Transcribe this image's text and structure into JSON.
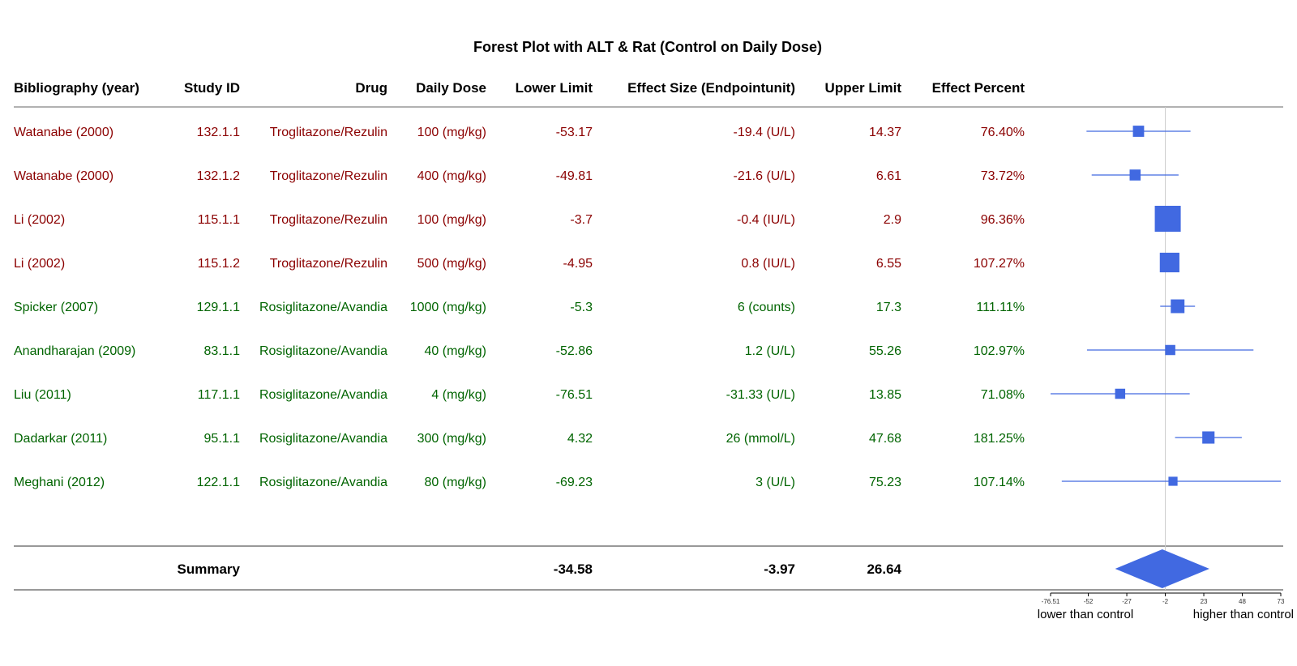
{
  "chart_data": {
    "type": "forest",
    "title": "Forest Plot with ALT & Rat (Control on Daily Dose)",
    "columns": [
      "Bibliography (year)",
      "Study ID",
      "Drug",
      "Daily Dose",
      "Lower Limit",
      "Effect Size (Endpointunit)",
      "Upper Limit",
      "Effect Percent"
    ],
    "groups": [
      {
        "drug": "Troglitazone/Rezulin",
        "color": "#8b0000"
      },
      {
        "drug": "Rosiglitazone/Avandia",
        "color": "#006400"
      }
    ],
    "rows": [
      {
        "bibliography": "Watanabe (2000)",
        "study_id": "132.1.1",
        "drug": "Troglitazone/Rezulin",
        "dose": "100 (mg/kg)",
        "lower": -53.17,
        "effect": -19.4,
        "effect_text": "-19.4 (U/L)",
        "upper": 14.37,
        "percent": "76.40%",
        "weight": 0.3
      },
      {
        "bibliography": "Watanabe (2000)",
        "study_id": "132.1.2",
        "drug": "Troglitazone/Rezulin",
        "dose": "400 (mg/kg)",
        "lower": -49.81,
        "effect": -21.6,
        "effect_text": "-21.6 (U/L)",
        "upper": 6.61,
        "percent": "73.72%",
        "weight": 0.29
      },
      {
        "bibliography": "Li (2002)",
        "study_id": "115.1.1",
        "drug": "Troglitazone/Rezulin",
        "dose": "100 (mg/kg)",
        "lower": -3.7,
        "effect": -0.4,
        "effect_text": "-0.4 (IU/L)",
        "upper": 2.9,
        "percent": "96.36%",
        "weight": 1.0
      },
      {
        "bibliography": "Li (2002)",
        "study_id": "115.1.2",
        "drug": "Troglitazone/Rezulin",
        "dose": "500 (mg/kg)",
        "lower": -4.95,
        "effect": 0.8,
        "effect_text": "0.8 (IU/L)",
        "upper": 6.55,
        "percent": "107.27%",
        "weight": 0.7
      },
      {
        "bibliography": "Spicker (2007)",
        "study_id": "129.1.1",
        "drug": "Rosiglitazone/Avandia",
        "dose": "1000 (mg/kg)",
        "lower": -5.3,
        "effect": 6,
        "effect_text": "6 (counts)",
        "upper": 17.3,
        "percent": "111.11%",
        "weight": 0.42
      },
      {
        "bibliography": "Anandharajan (2009)",
        "study_id": "83.1.1",
        "drug": "Rosiglitazone/Avandia",
        "dose": "40 (mg/kg)",
        "lower": -52.86,
        "effect": 1.2,
        "effect_text": "1.2 (U/L)",
        "upper": 55.26,
        "percent": "102.97%",
        "weight": 0.25
      },
      {
        "bibliography": "Liu (2011)",
        "study_id": "117.1.1",
        "drug": "Rosiglitazone/Avandia",
        "dose": "4 (mg/kg)",
        "lower": -76.51,
        "effect": -31.33,
        "effect_text": "-31.33 (U/L)",
        "upper": 13.85,
        "percent": "71.08%",
        "weight": 0.25
      },
      {
        "bibliography": "Dadarkar (2011)",
        "study_id": "95.1.1",
        "drug": "Rosiglitazone/Avandia",
        "dose": "300 (mg/kg)",
        "lower": 4.32,
        "effect": 26,
        "effect_text": "26 (mmol/L)",
        "upper": 47.68,
        "percent": "181.25%",
        "weight": 0.35
      },
      {
        "bibliography": "Meghani (2012)",
        "study_id": "122.1.1",
        "drug": "Rosiglitazone/Avandia",
        "dose": "80 (mg/kg)",
        "lower": -69.23,
        "effect": 3,
        "effect_text": "3 (U/L)",
        "upper": 75.23,
        "percent": "107.14%",
        "weight": 0.2
      }
    ],
    "summary": {
      "label": "Summary",
      "lower": -34.58,
      "effect": -3.97,
      "upper": 26.64,
      "lower_text": "-34.58",
      "effect_text": "-3.97",
      "upper_text": "26.64"
    },
    "x_ticks": [
      -76.51,
      -52,
      -27,
      -2,
      23,
      48,
      73
    ],
    "x_tick_labels": [
      "-76.51",
      "-52",
      "-27",
      "-2",
      "23",
      "48",
      "73"
    ],
    "xlim": [
      -76.51,
      73
    ],
    "reference_line": -2,
    "direction_labels": {
      "left": "lower than control",
      "right": "higher than control"
    },
    "marker_color": "#4169e1"
  }
}
